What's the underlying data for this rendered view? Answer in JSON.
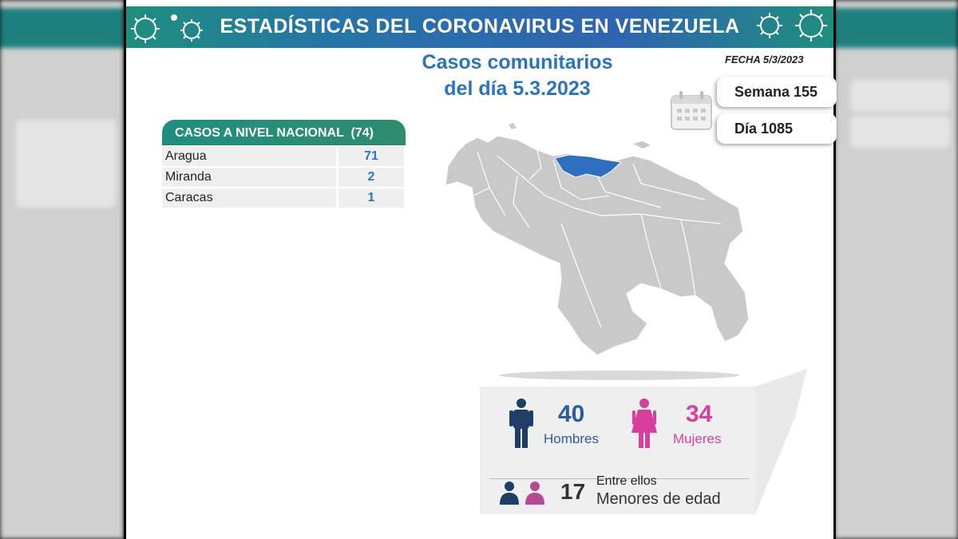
{
  "header": {
    "title": "ESTADÍSTICAS DEL CORONAVIRUS EN VENEZUELA"
  },
  "subtitle": {
    "line1": "Casos comunitarios",
    "line2": "del día 5.3.2023"
  },
  "fecha": "FECHA 5/3/2023",
  "semana": "Semana 155",
  "dia": "Día 1085",
  "table": {
    "header": "CASOS A NIVEL NACIONAL  (74)",
    "rows": [
      {
        "state": "Aragua",
        "cases": "71"
      },
      {
        "state": "Miranda",
        "cases": "2"
      },
      {
        "state": "Caracas",
        "cases": "1"
      }
    ]
  },
  "stats": {
    "men_count": "40",
    "men_label": "Hombres",
    "women_count": "34",
    "women_label": "Mujeres",
    "minors_count": "17",
    "minors_line1": "Entre ellos",
    "minors_line2": "Menores de edad"
  },
  "colors": {
    "accent_blue": "#2b74bd",
    "teal": "#1f8e7e",
    "men": "#1d3f66",
    "women": "#d63fa0",
    "highlight_state": "#2f6fc0"
  },
  "icons": [
    "virus-icon",
    "calendar-icon",
    "man-icon",
    "woman-icon",
    "children-icon"
  ]
}
